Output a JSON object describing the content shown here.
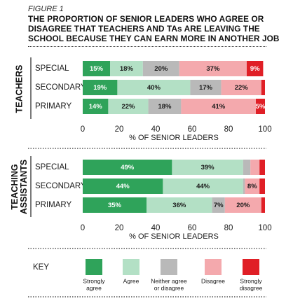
{
  "figure_label": "FIGURE 1",
  "title_lines": [
    "THE PROPORTION OF SENIOR LEADERS WHO AGREE OR",
    "DISAGREE THAT TEACHERS AND TAs ARE LEAVING THE",
    "SCHOOL BECAUSE THEY CAN EARN MORE IN ANOTHER JOB"
  ],
  "colors": {
    "strongly_agree": "#2fa35a",
    "agree": "#b3e0c5",
    "neither": "#b9b9b9",
    "disagree": "#f4a9ad",
    "strongly_disagree": "#e01f26"
  },
  "key": {
    "title": "KEY",
    "items": [
      {
        "label_lines": [
          "Strongly",
          "agree"
        ],
        "color_key": "strongly_agree"
      },
      {
        "label_lines": [
          "Agree"
        ],
        "color_key": "agree"
      },
      {
        "label_lines": [
          "Neither agree",
          "or disagree"
        ],
        "color_key": "neither"
      },
      {
        "label_lines": [
          "Disagree"
        ],
        "color_key": "disagree"
      },
      {
        "label_lines": [
          "Strongly",
          "disagree"
        ],
        "color_key": "strongly_disagree"
      }
    ]
  },
  "chart_data": [
    {
      "type": "bar",
      "orientation": "horizontal-stacked",
      "group_label_lines": [
        "TEACHERS"
      ],
      "xlabel": "% OF SENIOR LEADERS",
      "xlim": [
        0,
        100
      ],
      "xticks": [
        0,
        20,
        40,
        60,
        80,
        100
      ],
      "categories": [
        "SPECIAL",
        "SECONDARY",
        "PRIMARY"
      ],
      "series_keys": [
        "strongly_agree",
        "agree",
        "neither",
        "disagree",
        "strongly_disagree"
      ],
      "values": [
        [
          15,
          18,
          20,
          37,
          9
        ],
        [
          19,
          40,
          17,
          22,
          2
        ],
        [
          14,
          22,
          18,
          41,
          5
        ]
      ],
      "data_labels": [
        [
          "15%",
          "18%",
          "20%",
          "37%",
          "9%"
        ],
        [
          "19%",
          "40%",
          "17%",
          "22%",
          ""
        ],
        [
          "14%",
          "22%",
          "18%",
          "41%",
          "5%"
        ]
      ]
    },
    {
      "type": "bar",
      "orientation": "horizontal-stacked",
      "group_label_lines": [
        "TEACHING",
        "ASSISTANTS"
      ],
      "xlabel": "% OF SENIOR LEADERS",
      "xlim": [
        0,
        100
      ],
      "xticks": [
        0,
        20,
        40,
        60,
        80,
        100
      ],
      "categories": [
        "SPECIAL",
        "SECONDARY",
        "PRIMARY"
      ],
      "series_keys": [
        "strongly_agree",
        "agree",
        "neither",
        "disagree",
        "strongly_disagree"
      ],
      "values": [
        [
          49,
          39,
          4,
          5,
          3
        ],
        [
          44,
          44,
          1,
          8,
          3
        ],
        [
          35,
          36,
          7,
          20,
          2
        ]
      ],
      "data_labels": [
        [
          "49%",
          "39%",
          "",
          "",
          ""
        ],
        [
          "44%",
          "44%",
          "",
          "8%",
          ""
        ],
        [
          "35%",
          "36%",
          "7%",
          "20%",
          ""
        ]
      ]
    }
  ]
}
